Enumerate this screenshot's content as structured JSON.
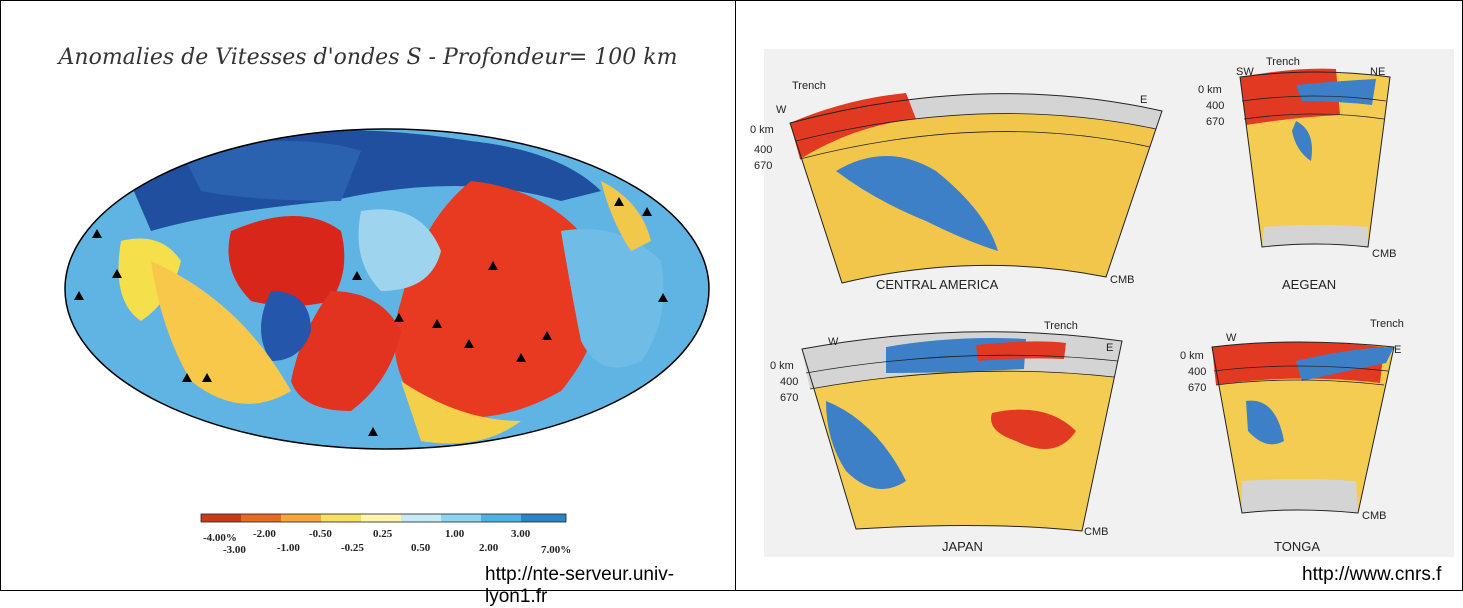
{
  "left_panel": {
    "title": "Anomalies de Vitesses d'ondes S - Profondeur= 100 km",
    "legend_top": [
      "-4.00%",
      "-2.00",
      "-0.50",
      "0.25",
      "1.00",
      "3.00"
    ],
    "legend_bottom": [
      "-3.00",
      "-1.00",
      "-0.25",
      "0.50",
      "2.00",
      "7.00%"
    ],
    "credit": "http://nte-serveur.univ-lyon1.fr"
  },
  "right_panel": {
    "sections": [
      {
        "name": "CENTRAL AMERICA",
        "left_dir": "W",
        "right_dir": "E",
        "trench": "Trench",
        "cmb": "CMB"
      },
      {
        "name": "AEGEAN",
        "left_dir": "SW",
        "right_dir": "NE",
        "trench": "Trench",
        "cmb": "CMB"
      },
      {
        "name": "JAPAN",
        "left_dir": "W",
        "right_dir": "E",
        "trench": "Trench",
        "cmb": "CMB"
      },
      {
        "name": "TONGA",
        "left_dir": "W",
        "right_dir": "E",
        "trench": "Trench",
        "cmb": "CMB"
      }
    ],
    "depths": [
      "0 km",
      "400",
      "670"
    ],
    "credit": "http://www.cnrs.f"
  }
}
